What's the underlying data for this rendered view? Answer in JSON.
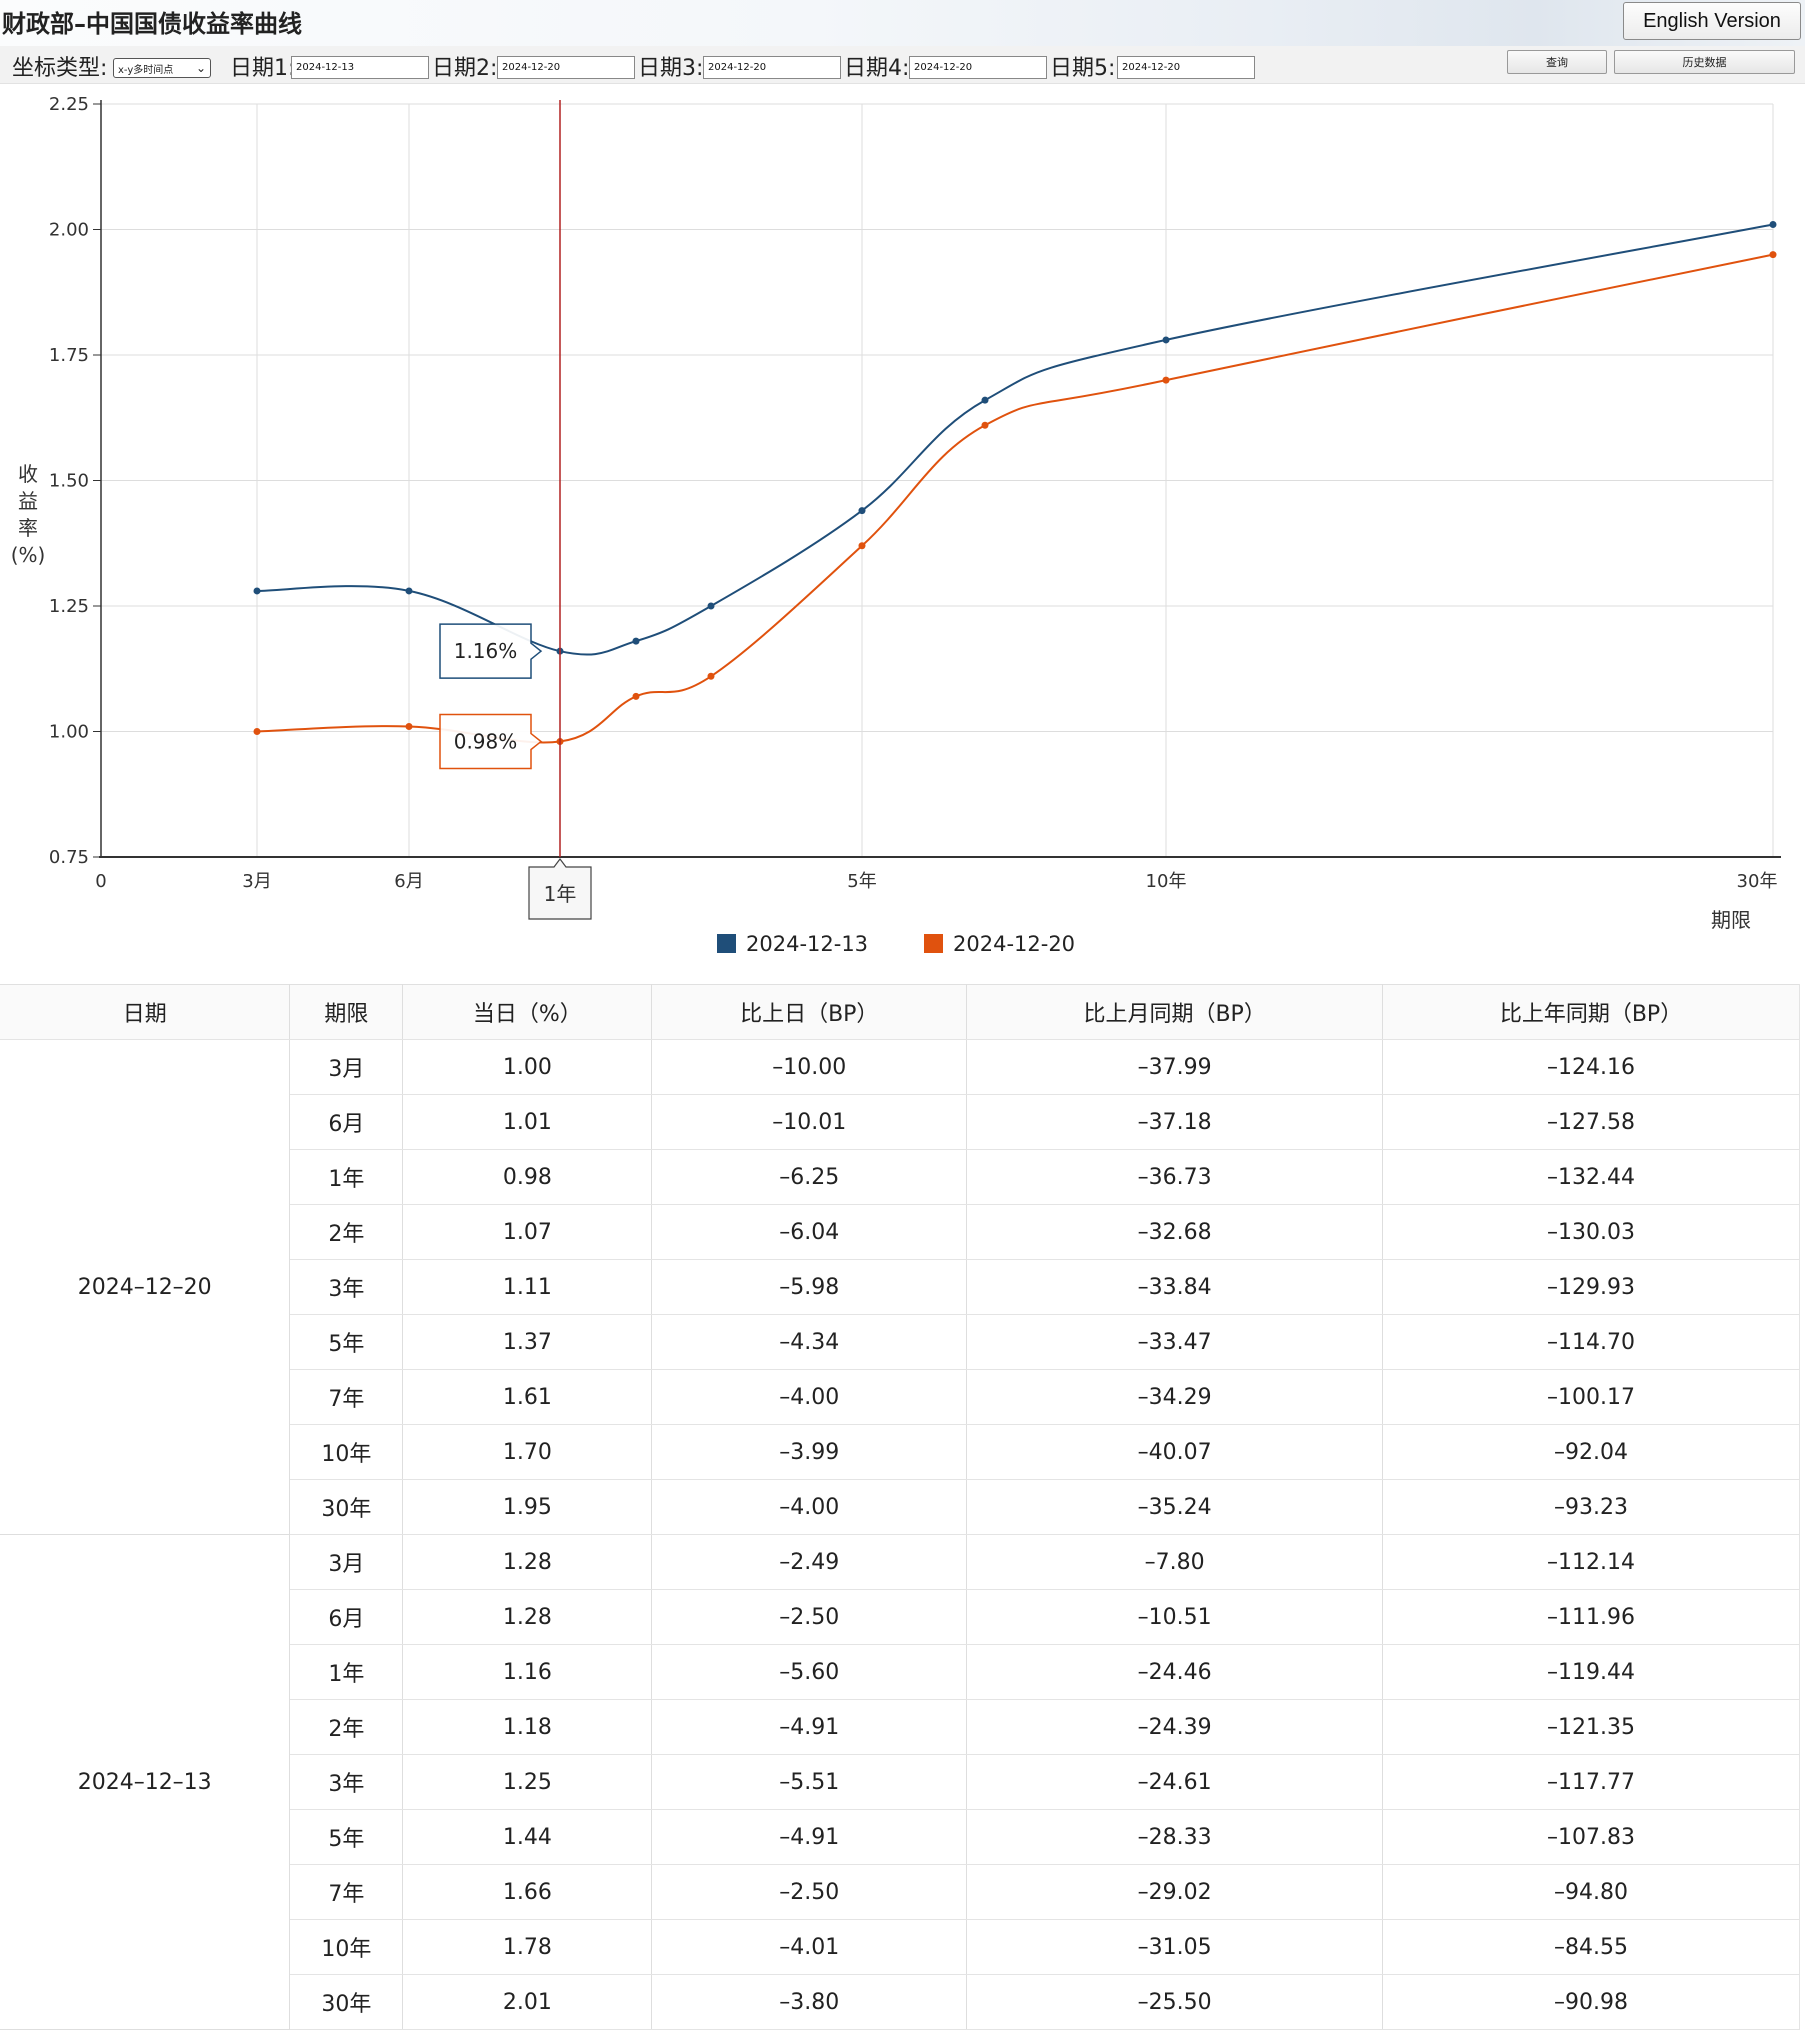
{
  "header": {
    "title": "财政部–中国国债收益率曲线",
    "english_button": "English Version"
  },
  "toolbar": {
    "axis_type_label": "坐标类型:",
    "axis_type_value": "x-y多时间点",
    "dates": [
      {
        "label": "日期1:",
        "value": "2024-12-13"
      },
      {
        "label": "日期2:",
        "value": "2024-12-20"
      },
      {
        "label": "日期3:",
        "value": "2024-12-20"
      },
      {
        "label": "日期4:",
        "value": "2024-12-20"
      },
      {
        "label": "日期5:",
        "value": "2024-12-20"
      }
    ],
    "query_button": "查询",
    "history_button": "历史数据"
  },
  "colors": {
    "series_1": "#1f4e79",
    "series_2": "#e0520e",
    "crosshair": "#b22222",
    "grid": "#dddddd"
  },
  "chart_data": {
    "type": "line",
    "ylabel_chars": [
      "收",
      "益",
      "率",
      "(%)"
    ],
    "xlabel": "期限",
    "ylim": [
      0.75,
      2.25
    ],
    "xlim": [
      0,
      30
    ],
    "y_ticks": [
      "0.75",
      "1.00",
      "1.25",
      "1.50",
      "1.75",
      "2.00",
      "2.25"
    ],
    "x_ticks": [
      {
        "x": 0,
        "label": "0"
      },
      {
        "x": 0.25,
        "label": "3月"
      },
      {
        "x": 0.5,
        "label": "6月"
      },
      {
        "x": 1,
        "label": "1年"
      },
      {
        "x": 5,
        "label": "5年"
      },
      {
        "x": 10,
        "label": "10年"
      },
      {
        "x": 30,
        "label": "30年"
      }
    ],
    "grid": true,
    "legend_position": "bottom-center",
    "series": [
      {
        "name": "2024-12-13",
        "x": [
          0.25,
          0.5,
          1,
          2,
          3,
          5,
          7,
          10,
          30
        ],
        "y": [
          1.28,
          1.28,
          1.16,
          1.18,
          1.25,
          1.44,
          1.66,
          1.78,
          2.01
        ]
      },
      {
        "name": "2024-12-20",
        "x": [
          0.25,
          0.5,
          1,
          2,
          3,
          5,
          7,
          10,
          30
        ],
        "y": [
          1.0,
          1.01,
          0.98,
          1.07,
          1.11,
          1.37,
          1.61,
          1.7,
          1.95
        ]
      }
    ],
    "hover": {
      "x": 1,
      "label": "1年",
      "tooltips": [
        "1.16%",
        "0.98%"
      ]
    }
  },
  "table": {
    "headers": [
      "日期",
      "期限",
      "当日（%）",
      "比上日（BP）",
      "比上月同期（BP）",
      "比上年同期（BP）"
    ],
    "groups": [
      {
        "date": "2024–12–20",
        "rows": [
          [
            "3月",
            "1.00",
            "–10.00",
            "–37.99",
            "–124.16"
          ],
          [
            "6月",
            "1.01",
            "–10.01",
            "–37.18",
            "–127.58"
          ],
          [
            "1年",
            "0.98",
            "–6.25",
            "–36.73",
            "–132.44"
          ],
          [
            "2年",
            "1.07",
            "–6.04",
            "–32.68",
            "–130.03"
          ],
          [
            "3年",
            "1.11",
            "–5.98",
            "–33.84",
            "–129.93"
          ],
          [
            "5年",
            "1.37",
            "–4.34",
            "–33.47",
            "–114.70"
          ],
          [
            "7年",
            "1.61",
            "–4.00",
            "–34.29",
            "–100.17"
          ],
          [
            "10年",
            "1.70",
            "–3.99",
            "–40.07",
            "–92.04"
          ],
          [
            "30年",
            "1.95",
            "–4.00",
            "–35.24",
            "–93.23"
          ]
        ]
      },
      {
        "date": "2024–12–13",
        "rows": [
          [
            "3月",
            "1.28",
            "–2.49",
            "–7.80",
            "–112.14"
          ],
          [
            "6月",
            "1.28",
            "–2.50",
            "–10.51",
            "–111.96"
          ],
          [
            "1年",
            "1.16",
            "–5.60",
            "–24.46",
            "–119.44"
          ],
          [
            "2年",
            "1.18",
            "–4.91",
            "–24.39",
            "–121.35"
          ],
          [
            "3年",
            "1.25",
            "–5.51",
            "–24.61",
            "–117.77"
          ],
          [
            "5年",
            "1.44",
            "–4.91",
            "–28.33",
            "–107.83"
          ],
          [
            "7年",
            "1.66",
            "–2.50",
            "–29.02",
            "–94.80"
          ],
          [
            "10年",
            "1.78",
            "–4.01",
            "–31.05",
            "–84.55"
          ],
          [
            "30年",
            "2.01",
            "–3.80",
            "–25.50",
            "–90.98"
          ]
        ]
      }
    ]
  }
}
